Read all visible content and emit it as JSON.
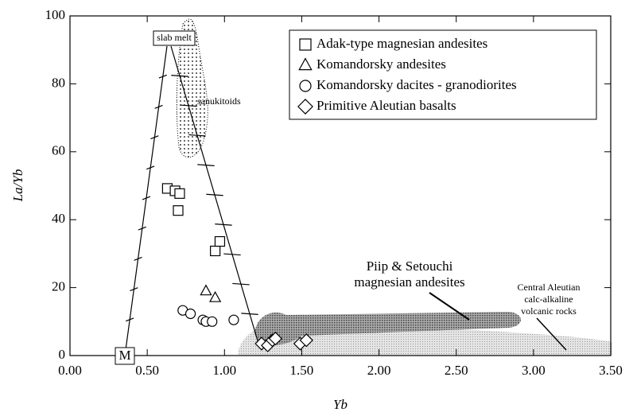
{
  "chart_data": {
    "type": "scatter",
    "xlabel": "Yb",
    "ylabel": "La/Yb",
    "xlim": [
      0,
      3.5
    ],
    "ylim": [
      0,
      100
    ],
    "xticks": [
      {
        "value": 0,
        "label": "0.00"
      },
      {
        "value": 0.5,
        "label": "0.50"
      },
      {
        "value": 1,
        "label": "1.00"
      },
      {
        "value": 1.5,
        "label": "1.50"
      },
      {
        "value": 2,
        "label": "2.00"
      },
      {
        "value": 2.5,
        "label": "2.50"
      },
      {
        "value": 3,
        "label": "3.00"
      },
      {
        "value": 3.5,
        "label": "3.50"
      }
    ],
    "yticks": [
      0,
      20,
      40,
      60,
      80,
      100
    ],
    "legend": "upper right",
    "series": [
      {
        "name": "Adak-type magnesian andesites",
        "marker": "square",
        "color": "#000000",
        "x": [
          0.63,
          0.68,
          0.71,
          0.7,
          0.94,
          0.97
        ],
        "values": [
          49.2,
          48.5,
          47.7,
          42.7,
          30.8,
          33.6
        ]
      },
      {
        "name": "Komandorsky andesites",
        "marker": "triangle",
        "color": "#000000",
        "x": [
          0.88,
          0.94
        ],
        "values": [
          19,
          17
        ]
      },
      {
        "name": "Komandorsky dacites - granodiorites",
        "marker": "circle",
        "color": "#000000",
        "x": [
          0.73,
          0.78,
          0.86,
          0.88,
          0.92,
          1.06
        ],
        "values": [
          13.3,
          12.3,
          10.5,
          10,
          10,
          10.5
        ]
      },
      {
        "name": "Primitive Aleutian basalts",
        "marker": "diamond",
        "color": "#000000",
        "x": [
          1.24,
          1.28,
          1.31,
          1.33,
          1.49,
          1.53
        ],
        "values": [
          3.5,
          3,
          4.5,
          5,
          3.5,
          4.5
        ]
      }
    ],
    "annotations": [
      "slab melt",
      "sanukitoids",
      "Piip & Setouchi",
      "magnesian andesites",
      "Central Aleutian",
      "calc-alkaline",
      "volcanic rocks",
      "M"
    ]
  }
}
